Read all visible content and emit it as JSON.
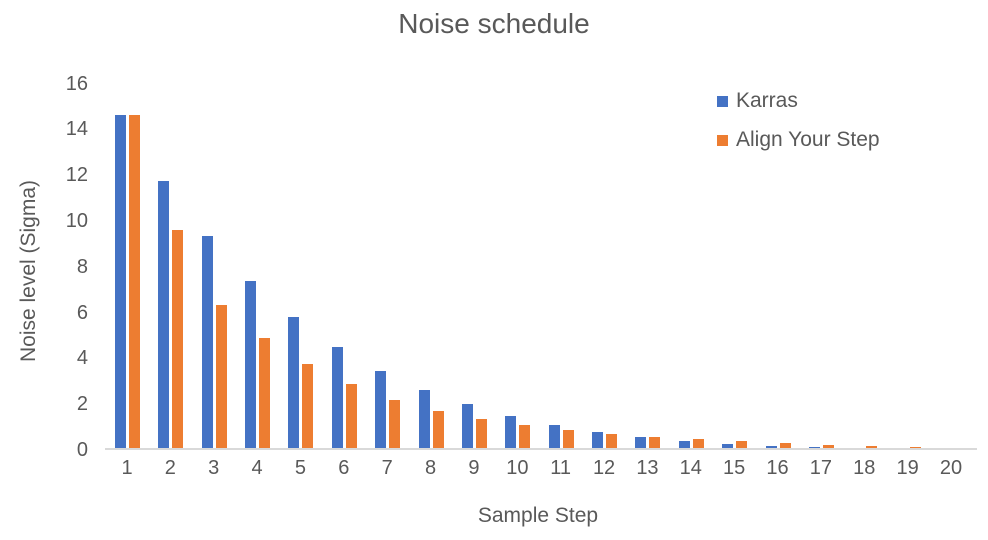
{
  "title": "Noise schedule",
  "x_axis": {
    "label": "Sample Step",
    "ticks": [
      "1",
      "2",
      "3",
      "4",
      "5",
      "6",
      "7",
      "8",
      "9",
      "10",
      "11",
      "12",
      "13",
      "14",
      "15",
      "16",
      "17",
      "18",
      "19",
      "20"
    ]
  },
  "y_axis": {
    "label": "Noise level (Sigma)",
    "ticks": [
      "0",
      "2",
      "4",
      "6",
      "8",
      "10",
      "12",
      "14",
      "16"
    ]
  },
  "legend": {
    "items": [
      {
        "label": "Karras",
        "color": "#4472C4"
      },
      {
        "label": "Align Your Step",
        "color": "#ED7D31"
      }
    ]
  },
  "colors": {
    "karras_blue": "#4472C4",
    "align_your_step_orange": "#ED7D31",
    "axis_gray": "#D9D9D9",
    "text_gray": "#595959"
  },
  "chart_data": {
    "type": "bar",
    "title": "Noise schedule",
    "xlabel": "Sample Step",
    "ylabel": "Noise level (Sigma)",
    "categories": [
      "1",
      "2",
      "3",
      "4",
      "5",
      "6",
      "7",
      "8",
      "9",
      "10",
      "11",
      "12",
      "13",
      "14",
      "15",
      "16",
      "17",
      "18",
      "19",
      "20"
    ],
    "series": [
      {
        "name": "Karras",
        "color": "#4472C4",
        "values": [
          14.61,
          11.73,
          9.34,
          7.39,
          5.79,
          4.5,
          3.47,
          2.64,
          1.99,
          1.48,
          1.09,
          0.79,
          0.56,
          0.4,
          0.27,
          0.18,
          0.12,
          0.08,
          0.05,
          0.03
        ]
      },
      {
        "name": "Align Your Step",
        "color": "#ED7D31",
        "values": [
          14.61,
          9.61,
          6.32,
          4.88,
          3.77,
          2.87,
          2.18,
          1.71,
          1.34,
          1.08,
          0.86,
          0.69,
          0.56,
          0.46,
          0.38,
          0.3,
          0.23,
          0.16,
          0.11,
          0.06
        ]
      }
    ],
    "ylim": [
      0,
      16
    ],
    "y_tick_step": 2,
    "grid": false,
    "legend_position": "top-right"
  }
}
